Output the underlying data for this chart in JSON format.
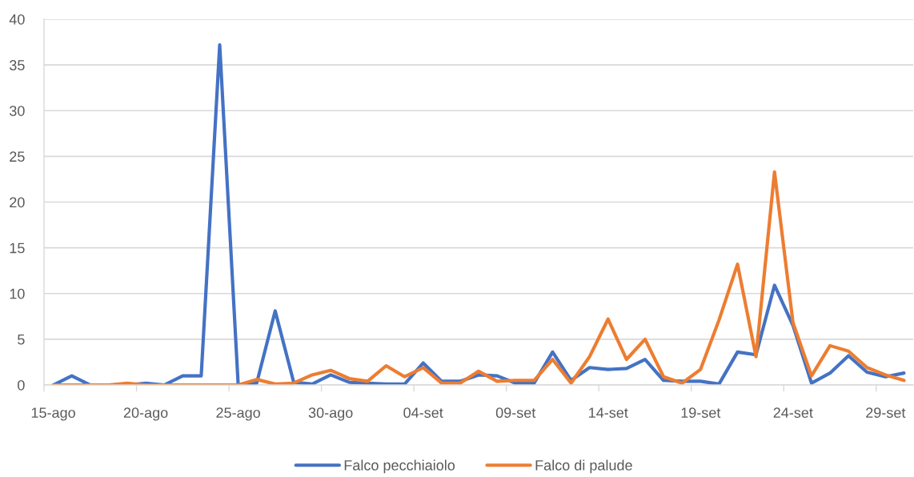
{
  "chart_data": {
    "type": "line",
    "categories": [
      "15-ago",
      null,
      null,
      null,
      null,
      "20-ago",
      null,
      null,
      null,
      null,
      "25-ago",
      null,
      null,
      null,
      null,
      "30-ago",
      null,
      null,
      null,
      null,
      "04-set",
      null,
      null,
      null,
      null,
      "09-set",
      null,
      null,
      null,
      null,
      "14-set",
      null,
      null,
      null,
      null,
      "19-set",
      null,
      null,
      null,
      null,
      "24-set",
      null,
      null,
      null,
      null,
      "29-set",
      null
    ],
    "series": [
      {
        "name": "Falco pecchiaiolo",
        "color": "#4472c4",
        "values": [
          0,
          1.0,
          0,
          0,
          0,
          0.2,
          0,
          1.0,
          1.0,
          37.2,
          0,
          0.2,
          8.1,
          0.3,
          0.1,
          1.1,
          0.3,
          0.2,
          0.1,
          0.1,
          2.4,
          0.4,
          0.4,
          1.1,
          1.0,
          0.2,
          0.2,
          3.6,
          0.5,
          1.9,
          1.7,
          1.8,
          2.8,
          0.5,
          0.4,
          0.4,
          0.1,
          3.6,
          3.3,
          10.9,
          6.5,
          0.2,
          1.3,
          3.2,
          1.4,
          0.9,
          1.3
        ]
      },
      {
        "name": "Falco di palude",
        "color": "#ed7d31",
        "values": [
          0,
          0,
          0,
          0,
          0.2,
          0,
          0,
          0,
          0,
          0,
          0,
          0.6,
          0.1,
          0.2,
          1.1,
          1.6,
          0.7,
          0.4,
          2.1,
          0.9,
          1.9,
          0.2,
          0.2,
          1.5,
          0.4,
          0.5,
          0.5,
          2.8,
          0.2,
          3.1,
          7.2,
          2.8,
          5.0,
          0.9,
          0.2,
          1.7,
          7.1,
          13.2,
          3.1,
          23.3,
          6.8,
          1.0,
          4.3,
          3.7,
          1.9,
          1.1,
          0.5
        ]
      }
    ],
    "ylim": [
      0,
      40
    ],
    "yticks": [
      0,
      5,
      10,
      15,
      20,
      25,
      30,
      35,
      40
    ],
    "grid": "y",
    "legend": "bottom",
    "line_style": "solid"
  }
}
